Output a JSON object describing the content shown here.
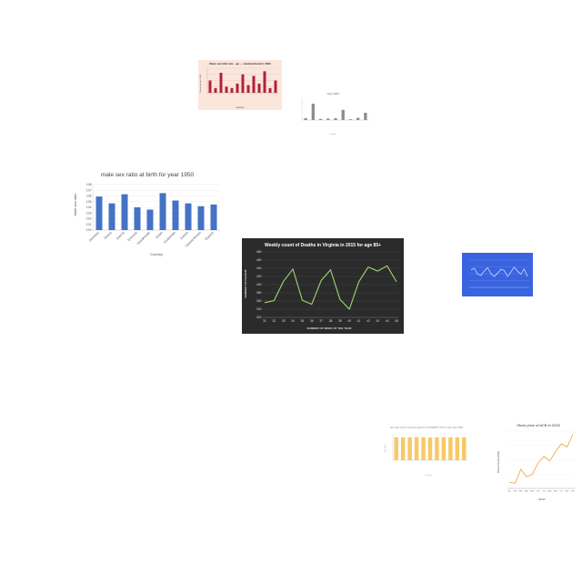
{
  "chart_data": [
    {
      "type": "bar",
      "title": "Mean suicidal rate ...ge ... standardized) in 2000",
      "xlabel": "Country",
      "ylabel": "Suicide rate (per 100k)",
      "categories": [
        "C1",
        "C2",
        "C3",
        "C4",
        "C5",
        "C6",
        "C7",
        "C8",
        "C9",
        "C10",
        "C11",
        "C12",
        "C13"
      ],
      "values": [
        4.0,
        1.5,
        6.5,
        2.0,
        1.5,
        3.0,
        6.0,
        2.5,
        5.5,
        3.0,
        7.0,
        1.5,
        4.0
      ],
      "ylim": [
        0,
        8
      ],
      "grid": true,
      "colors": {
        "bar": "#b3203c",
        "background": "#fbe6dc"
      }
    },
    {
      "type": "bar",
      "title": "Year 2000",
      "xlabel": "Country",
      "ylabel": "",
      "categories": [
        "C1",
        "C2",
        "C3",
        "C4",
        "C5",
        "C6",
        "C7",
        "C8",
        "C9"
      ],
      "values": [
        0.5,
        4.5,
        0.3,
        0.4,
        0.5,
        2.8,
        0.2,
        0.6,
        2.0
      ],
      "ylim": [
        0,
        6
      ],
      "grid": false,
      "colors": {
        "bar": "#8c8c8c",
        "background": "#ffffff"
      }
    },
    {
      "type": "bar",
      "title": "male sex ratio at birth for year 1950",
      "xlabel": "Country",
      "ylabel": "Male sex ratio",
      "categories": [
        "Germany",
        "Ghana",
        "Greece",
        "Grenada",
        "Guadeloupe",
        "Guam",
        "Guatemala",
        "Guinea",
        "Guinea-Bissau",
        "Guyana"
      ],
      "values": [
        105.9,
        104.7,
        106.3,
        104.0,
        103.6,
        106.5,
        105.2,
        104.7,
        104.2,
        104.5
      ],
      "yticks": [
        "100",
        "101",
        "102",
        "103",
        "104",
        "105",
        "106",
        "107",
        "108"
      ],
      "ylim": [
        100,
        108
      ],
      "grid": true,
      "colors": {
        "bar": "#4472c4",
        "background": "#ffffff"
      }
    },
    {
      "type": "line",
      "title": "Weekly count of Deaths in Virginia in 2015 for age 85+",
      "xlabel": "NUMBER OF WEEK OF THE YEAR",
      "ylabel": "NUMBER OF DEATHS",
      "x": [
        "31",
        "32",
        "33",
        "34",
        "35",
        "36",
        "37",
        "38",
        "39",
        "40",
        "41",
        "42",
        "43",
        "44",
        "45"
      ],
      "series": [
        {
          "values": [
            356,
            361,
            408,
            438,
            362,
            352,
            410,
            436,
            364,
            340,
            407,
            443,
            433,
            446,
            407
          ]
        }
      ],
      "yticks": [
        "320",
        "340",
        "360",
        "380",
        "400",
        "420",
        "440",
        "460",
        "480"
      ],
      "ylim": [
        320,
        480
      ],
      "grid": true,
      "colors": {
        "line": "#9ed770",
        "background": "#2b2b2b"
      }
    },
    {
      "type": "line",
      "title": "",
      "xlabel": "",
      "ylabel": "",
      "x": [
        1,
        2,
        3,
        4,
        5,
        6,
        7,
        8,
        9,
        10,
        11,
        12,
        13,
        14,
        15,
        16,
        17,
        18
      ],
      "series": [
        {
          "values": [
            6.2,
            6.5,
            5.4,
            5.2,
            6.0,
            6.6,
            5.5,
            5.0,
            5.6,
            6.3,
            6.1,
            5.0,
            5.8,
            6.7,
            6.0,
            5.4,
            6.4,
            5.0
          ]
        }
      ],
      "ylim": [
        3,
        8
      ],
      "grid": true,
      "colors": {
        "line": "#ffffff",
        "background": "#3a63e0"
      }
    },
    {
      "type": "bar",
      "title": "Sex ratio (m/f) of persons aged 0-14 (UNWPP, 2017) in the Year 1985",
      "xlabel": "Country",
      "ylabel": "Sex ratio",
      "categories": [
        "C1",
        "C2",
        "C3",
        "C4",
        "C5",
        "C6",
        "C7",
        "C8",
        "C9",
        "C10",
        "C11"
      ],
      "values": [
        104,
        104,
        104,
        105,
        104,
        103,
        104,
        104,
        104,
        104,
        104
      ],
      "ylim": [
        0,
        120
      ],
      "grid": true,
      "colors": {
        "bar": "#f7c966",
        "background": "#ffffff"
      }
    },
    {
      "type": "line",
      "title": "Stock price of ACB in 2016",
      "xlabel": "Month",
      "ylabel": "Price of Stock (VND)",
      "x": [
        "Jan",
        "Feb",
        "Mar",
        "Apr",
        "May",
        "Jun",
        "Jul",
        "Aug",
        "Sep",
        "Oct",
        "Nov",
        "Dec"
      ],
      "series": [
        {
          "values": [
            210,
            208,
            230,
            218,
            222,
            240,
            250,
            243,
            258,
            270,
            265,
            285
          ]
        }
      ],
      "ylim": [
        200,
        290
      ],
      "grid": true,
      "colors": {
        "line": "#f0a030",
        "background": "#ffffff"
      }
    }
  ]
}
